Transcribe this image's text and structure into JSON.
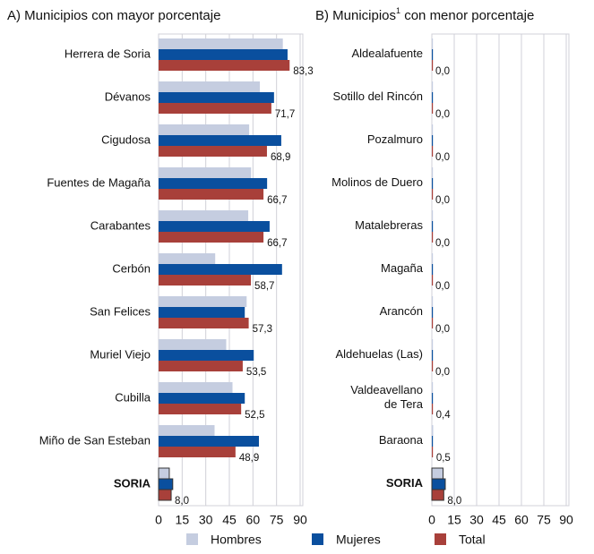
{
  "chart_data": [
    {
      "type": "hbar",
      "title": "A) Municipios con mayor porcentaje",
      "categories": [
        "Herrera de Soria",
        "Dévanos",
        "Cigudosa",
        "Fuentes de Magaña",
        "Carabantes",
        "Cerbón",
        "San Felices",
        "Muriel Viejo",
        "Cubilla",
        "Miño de San Esteban",
        "SORIA"
      ],
      "series": [
        {
          "name": "Hombres",
          "color": "#c5cde0",
          "values": [
            79,
            64.4,
            57.6,
            58.8,
            57,
            36,
            56,
            43,
            47,
            35.6,
            6.8
          ]
        },
        {
          "name": "Mujeres",
          "color": "#0a4f9e",
          "values": [
            82,
            73.4,
            78,
            69,
            70.6,
            78.5,
            54.8,
            60.5,
            54.8,
            63.8,
            9
          ]
        },
        {
          "name": "Total",
          "color": "#a8403a",
          "values": [
            83.3,
            71.7,
            68.9,
            66.7,
            66.7,
            58.7,
            57.3,
            53.5,
            52.5,
            48.9,
            8.0
          ],
          "value_labels": [
            "83,3",
            "71,7",
            "68,9",
            "66,7",
            "66,7",
            "58,7",
            "57,3",
            "53,5",
            "52,5",
            "48,9",
            "8,0"
          ]
        }
      ],
      "xlim": [
        0,
        90
      ],
      "xticks": [
        0,
        15,
        30,
        45,
        60,
        75,
        90
      ],
      "grid": true
    },
    {
      "type": "hbar",
      "title": "B) Municipios",
      "title_sup": "1",
      "title_rest": " con menor porcentaje",
      "categories": [
        [
          "Aldealafuente"
        ],
        [
          "Sotillo del Rincón"
        ],
        [
          "Pozalmuro"
        ],
        [
          "Molinos de Duero"
        ],
        [
          "Matalebreras"
        ],
        [
          "Magaña"
        ],
        [
          "Arancón"
        ],
        [
          "Aldehuelas (Las)"
        ],
        [
          "Valdeavellano",
          "de Tera"
        ],
        [
          "Baraona"
        ],
        [
          "SORIA"
        ]
      ],
      "series": [
        {
          "color": "#c5cde0",
          "values": [
            0,
            0,
            0,
            0,
            0,
            0,
            0,
            0,
            0.3,
            0.9,
            7.5
          ]
        },
        {
          "color": "#0a4f9e",
          "values": [
            0,
            0,
            0,
            0,
            0,
            0,
            0,
            0,
            0.6,
            0.2,
            9
          ]
        },
        {
          "color": "#a8403a",
          "values": [
            0.0,
            0.0,
            0.0,
            0.0,
            0.0,
            0.0,
            0.0,
            0.0,
            0.4,
            0.5,
            8.0
          ],
          "value_labels": [
            "0,0",
            "0,0",
            "0,0",
            "0,0",
            "0,0",
            "0,0",
            "0,0",
            "0,0",
            "0,4",
            "0,5",
            "8,0"
          ]
        }
      ],
      "xlim": [
        0,
        90
      ],
      "xticks": [
        0,
        15,
        30,
        45,
        60,
        75,
        90
      ],
      "grid": true
    }
  ]
}
